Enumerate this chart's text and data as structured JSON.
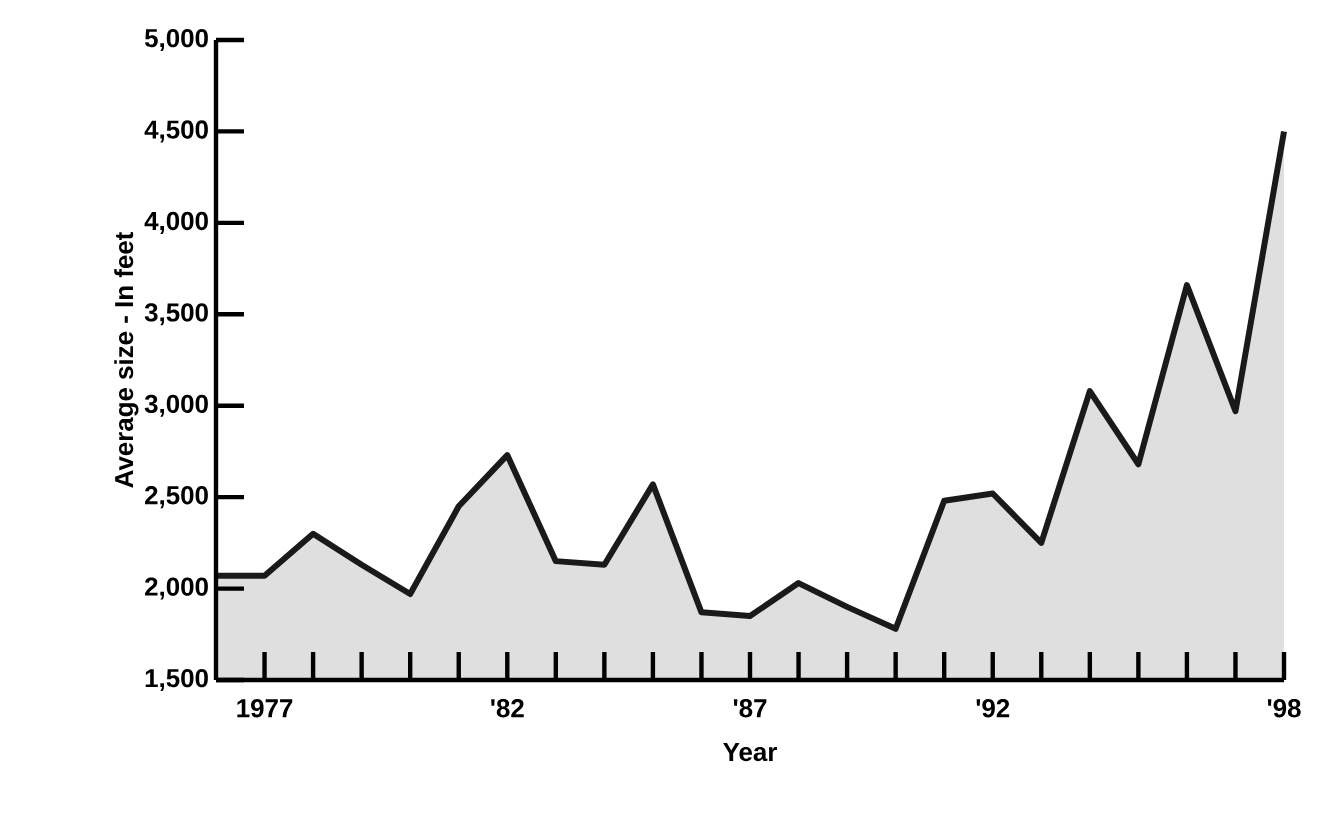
{
  "chart_data": {
    "type": "area",
    "xlabel": "Year",
    "ylabel": "Average size - In feet",
    "x": [
      1976,
      1977,
      1978,
      1979,
      1980,
      1981,
      1982,
      1983,
      1984,
      1985,
      1986,
      1987,
      1988,
      1989,
      1990,
      1991,
      1992,
      1993,
      1994,
      1995,
      1996,
      1997,
      1998
    ],
    "series": [
      {
        "color": "#1a1a1a",
        "values": [
          2070,
          2070,
          2300,
          2130,
          1970,
          2450,
          2730,
          2150,
          2130,
          2570,
          1870,
          1850,
          2030,
          1900,
          1780,
          2480,
          2520,
          2250,
          3080,
          2680,
          3660,
          2970,
          4500
        ]
      }
    ],
    "xlim": [
      1976,
      1998
    ],
    "xticks": [
      {
        "value": 1977,
        "label": "1977"
      },
      {
        "value": 1978,
        "label": null
      },
      {
        "value": 1979,
        "label": null
      },
      {
        "value": 1980,
        "label": null
      },
      {
        "value": 1981,
        "label": null
      },
      {
        "value": 1982,
        "label": "'82"
      },
      {
        "value": 1983,
        "label": null
      },
      {
        "value": 1984,
        "label": null
      },
      {
        "value": 1985,
        "label": null
      },
      {
        "value": 1986,
        "label": null
      },
      {
        "value": 1987,
        "label": "'87"
      },
      {
        "value": 1988,
        "label": null
      },
      {
        "value": 1989,
        "label": null
      },
      {
        "value": 1990,
        "label": null
      },
      {
        "value": 1991,
        "label": null
      },
      {
        "value": 1992,
        "label": "'92"
      },
      {
        "value": 1993,
        "label": null
      },
      {
        "value": 1994,
        "label": null
      },
      {
        "value": 1995,
        "label": null
      },
      {
        "value": 1996,
        "label": null
      },
      {
        "value": 1997,
        "label": null
      },
      {
        "value": 1998,
        "label": "'98"
      }
    ],
    "ylim": [
      1500,
      5000
    ],
    "yticks": [
      {
        "value": 1500,
        "label": "1,500"
      },
      {
        "value": 2000,
        "label": "2,000"
      },
      {
        "value": 2500,
        "label": "2,500"
      },
      {
        "value": 3000,
        "label": "3,000"
      },
      {
        "value": 3500,
        "label": "3,500"
      },
      {
        "value": 4000,
        "label": "4,000"
      },
      {
        "value": 4500,
        "label": "4,500"
      },
      {
        "value": 5000,
        "label": "5,000"
      }
    ],
    "grid": false,
    "marker": "none",
    "line_style": "solid"
  }
}
